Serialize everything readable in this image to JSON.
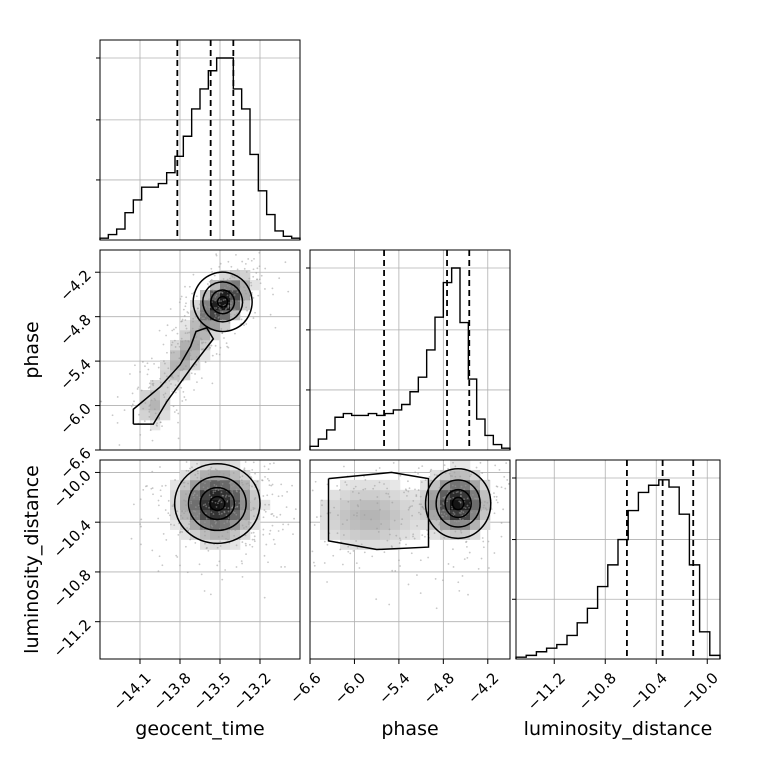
{
  "chart_data": {
    "type": "corner",
    "parameters": [
      "geocent_time",
      "phase",
      "luminosity_distance"
    ],
    "grid": true,
    "quantiles_marked": [
      0.16,
      0.5,
      0.84
    ],
    "marginals": [
      {
        "name": "geocent_time",
        "range": [
          -14.4,
          -12.9
        ],
        "quantiles": [
          -13.82,
          -13.57,
          -13.4
        ],
        "bins_relative": [
          0.01,
          0.03,
          0.06,
          0.15,
          0.22,
          0.29,
          0.29,
          0.31,
          0.37,
          0.46,
          0.57,
          0.72,
          0.83,
          0.93,
          1.0,
          1.0,
          0.83,
          0.72,
          0.47,
          0.27,
          0.14,
          0.05,
          0.02,
          0.01
        ],
        "x_ticks": [
          "−14.1",
          "−13.8",
          "−13.5",
          "−13.2"
        ]
      },
      {
        "name": "phase",
        "range": [
          -6.6,
          -3.9
        ],
        "quantiles": [
          -5.6,
          -4.75,
          -4.45
        ],
        "bins_relative": [
          0.02,
          0.06,
          0.11,
          0.18,
          0.2,
          0.19,
          0.19,
          0.2,
          0.19,
          0.2,
          0.22,
          0.25,
          0.32,
          0.4,
          0.55,
          0.73,
          0.92,
          1.0,
          0.7,
          0.39,
          0.17,
          0.08,
          0.03,
          0.01
        ],
        "y_ticks": [
          "−6.6",
          "−6.0",
          "−5.4",
          "−4.8",
          "−4.2"
        ],
        "x_ticks": [
          "−6.6",
          "−6.0",
          "−5.4",
          "−4.8",
          "−4.2"
        ]
      },
      {
        "name": "luminosity_distance",
        "range": [
          -11.5,
          -9.9
        ],
        "quantiles": [
          -10.63,
          -10.35,
          -10.11
        ],
        "bins_relative": [
          0.01,
          0.02,
          0.04,
          0.06,
          0.08,
          0.13,
          0.2,
          0.28,
          0.4,
          0.52,
          0.66,
          0.82,
          0.92,
          0.96,
          0.99,
          0.95,
          0.8,
          0.52,
          0.15,
          0.02
        ],
        "y_ticks": [
          "−11.2",
          "−10.8",
          "−10.4",
          "−10.0"
        ],
        "x_ticks": [
          "−11.2",
          "−10.8",
          "−10.4",
          "−10.0"
        ]
      }
    ],
    "joint": [
      {
        "x": "geocent_time",
        "y": "phase",
        "peak": [
          -13.5,
          -4.6
        ],
        "shape": "elongated positive correlation ridge from (-14.1, -6.2) to (-13.3, -4.3)"
      },
      {
        "x": "geocent_time",
        "y": "luminosity_distance",
        "peak": [
          -13.5,
          -10.25
        ],
        "shape": "broad elliptical blob"
      },
      {
        "x": "phase",
        "y": "luminosity_distance",
        "peak": [
          -4.6,
          -10.25
        ],
        "shape": "main blob near phase -4.6 with extended tail toward phase -6.3"
      }
    ]
  }
}
